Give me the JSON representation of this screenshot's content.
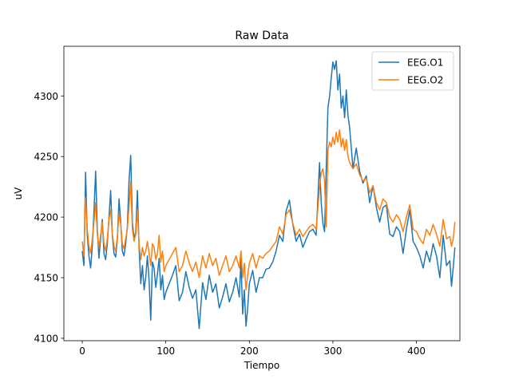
{
  "chart_data": {
    "type": "line",
    "title": "Raw Data",
    "xlabel": "Tiempo",
    "ylabel": "uV",
    "xlim": [
      -22,
      452
    ],
    "ylim": [
      4098,
      4341
    ],
    "xticks": [
      0,
      100,
      200,
      300,
      400
    ],
    "yticks": [
      4100,
      4150,
      4200,
      4250,
      4300
    ],
    "grid": false,
    "legend_position": "top-right",
    "series": [
      {
        "name": "EEG.O1",
        "color": "#1f77b4",
        "x": [
          0,
          2,
          4,
          6,
          8,
          10,
          12,
          14,
          16,
          18,
          20,
          22,
          24,
          26,
          28,
          30,
          32,
          34,
          36,
          38,
          40,
          42,
          44,
          46,
          48,
          50,
          52,
          54,
          56,
          58,
          60,
          62,
          64,
          66,
          68,
          70,
          72,
          74,
          76,
          78,
          80,
          82,
          84,
          86,
          88,
          90,
          92,
          94,
          96,
          98,
          100,
          104,
          108,
          112,
          116,
          120,
          124,
          128,
          132,
          136,
          140,
          144,
          148,
          152,
          156,
          160,
          164,
          168,
          172,
          176,
          180,
          184,
          188,
          190,
          192,
          194,
          196,
          198,
          200,
          204,
          208,
          212,
          216,
          220,
          224,
          228,
          232,
          236,
          240,
          244,
          248,
          252,
          256,
          260,
          264,
          268,
          272,
          276,
          280,
          284,
          286,
          288,
          290,
          292,
          294,
          296,
          298,
          300,
          302,
          304,
          306,
          308,
          310,
          312,
          314,
          316,
          318,
          320,
          324,
          328,
          332,
          336,
          340,
          344,
          348,
          352,
          356,
          360,
          364,
          368,
          372,
          376,
          380,
          384,
          388,
          392,
          396,
          400,
          404,
          408,
          412,
          416,
          420,
          424,
          428,
          432,
          436,
          440,
          442,
          444,
          446
        ],
        "values": [
          4172,
          4160,
          4237,
          4185,
          4168,
          4158,
          4176,
          4205,
          4238,
          4190,
          4166,
          4182,
          4198,
          4170,
          4165,
          4178,
          4200,
          4222,
          4185,
          4170,
          4167,
          4182,
          4215,
          4196,
          4172,
          4168,
          4178,
          4192,
          4230,
          4251,
          4196,
          4182,
          4188,
          4222,
          4175,
          4145,
          4160,
          4140,
          4150,
          4168,
          4148,
          4115,
          4163,
          4158,
          4142,
          4153,
          4166,
          4140,
          4152,
          4132,
          4138,
          4145,
          4152,
          4160,
          4131,
          4138,
          4155,
          4142,
          4133,
          4140,
          4108,
          4146,
          4132,
          4152,
          4138,
          4145,
          4125,
          4134,
          4145,
          4130,
          4138,
          4150,
          4134,
          4165,
          4120,
          4140,
          4110,
          4125,
          4145,
          4156,
          4138,
          4150,
          4150,
          4157,
          4158,
          4163,
          4172,
          4185,
          4180,
          4205,
          4214,
          4194,
          4180,
          4186,
          4175,
          4182,
          4188,
          4190,
          4185,
          4245,
          4212,
          4195,
          4188,
          4240,
          4290,
          4300,
          4315,
          4328,
          4322,
          4329,
          4305,
          4318,
          4290,
          4300,
          4282,
          4305,
          4284,
          4274,
          4240,
          4257,
          4238,
          4228,
          4234,
          4212,
          4226,
          4208,
          4196,
          4208,
          4210,
          4186,
          4184,
          4192,
          4188,
          4170,
          4190,
          4206,
          4180,
          4175,
          4168,
          4158,
          4172,
          4163,
          4178,
          4168,
          4150,
          4185,
          4160,
          4164,
          4143,
          4158,
          4175
        ]
      },
      {
        "name": "EEG.O2",
        "color": "#ff7f0e",
        "x": [
          0,
          2,
          4,
          6,
          8,
          10,
          12,
          14,
          16,
          18,
          20,
          22,
          24,
          26,
          28,
          30,
          32,
          34,
          36,
          38,
          40,
          42,
          44,
          46,
          48,
          50,
          52,
          54,
          56,
          58,
          60,
          62,
          64,
          66,
          68,
          70,
          72,
          74,
          76,
          78,
          80,
          82,
          84,
          86,
          88,
          90,
          92,
          94,
          96,
          98,
          100,
          104,
          108,
          112,
          116,
          120,
          124,
          128,
          132,
          136,
          140,
          144,
          148,
          152,
          156,
          160,
          164,
          168,
          172,
          176,
          180,
          184,
          188,
          190,
          192,
          194,
          196,
          198,
          200,
          204,
          208,
          212,
          216,
          220,
          224,
          228,
          232,
          236,
          240,
          244,
          248,
          252,
          256,
          260,
          264,
          268,
          272,
          276,
          280,
          284,
          286,
          288,
          290,
          292,
          294,
          296,
          298,
          300,
          302,
          304,
          306,
          308,
          310,
          312,
          314,
          316,
          318,
          320,
          324,
          328,
          332,
          336,
          340,
          344,
          348,
          352,
          356,
          360,
          364,
          368,
          372,
          376,
          380,
          384,
          388,
          392,
          396,
          400,
          404,
          408,
          412,
          416,
          420,
          424,
          428,
          432,
          436,
          440,
          442,
          444,
          446
        ],
        "values": [
          4180,
          4168,
          4216,
          4190,
          4176,
          4170,
          4182,
          4196,
          4212,
          4186,
          4175,
          4185,
          4196,
          4178,
          4172,
          4182,
          4198,
          4206,
          4186,
          4176,
          4172,
          4184,
          4203,
          4194,
          4178,
          4174,
          4182,
          4190,
          4208,
          4230,
          4190,
          4180,
          4186,
          4206,
          4178,
          4165,
          4175,
          4168,
          4172,
          4180,
          4170,
          4160,
          4178,
          4175,
          4165,
          4170,
          4185,
          4163,
          4172,
          4155,
          4160,
          4165,
          4170,
          4175,
          4155,
          4160,
          4172,
          4162,
          4155,
          4163,
          4150,
          4168,
          4158,
          4170,
          4160,
          4166,
          4152,
          4160,
          4168,
          4155,
          4160,
          4168,
          4158,
          4172,
          4150,
          4162,
          4140,
          4152,
          4162,
          4170,
          4158,
          4168,
          4166,
          4170,
          4172,
          4176,
          4180,
          4192,
          4186,
          4202,
          4206,
          4195,
          4185,
          4190,
          4184,
          4188,
          4192,
          4194,
          4190,
          4224,
          4236,
          4240,
          4230,
          4192,
          4255,
          4262,
          4258,
          4266,
          4260,
          4270,
          4262,
          4272,
          4258,
          4265,
          4255,
          4264,
          4250,
          4245,
          4240,
          4244,
          4235,
          4230,
          4232,
          4220,
          4226,
          4212,
          4206,
          4215,
          4212,
          4200,
          4196,
          4202,
          4198,
          4188,
          4200,
          4210,
          4190,
          4188,
          4182,
          4178,
          4190,
          4185,
          4194,
          4186,
          4176,
          4198,
          4182,
          4184,
          4176,
          4182,
          4196
        ]
      }
    ]
  }
}
